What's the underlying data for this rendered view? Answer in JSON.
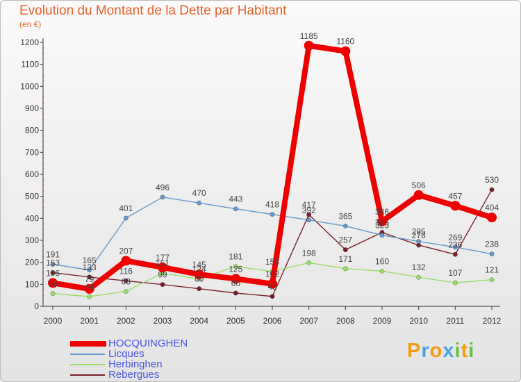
{
  "chart_data": {
    "type": "line",
    "title": "Evolution du Montant de la Dette par Habitant",
    "subtitle": "(en €)",
    "xlabel": "",
    "ylabel": "",
    "x": [
      "2000",
      "2001",
      "2002",
      "2003",
      "2004",
      "2005",
      "2006",
      "2007",
      "2008",
      "2009",
      "2010",
      "2011",
      "2012"
    ],
    "ylim": [
      0,
      1200
    ],
    "yticks": [
      0,
      100,
      200,
      300,
      400,
      500,
      600,
      700,
      800,
      900,
      1000,
      1100,
      1200
    ],
    "grid": false,
    "legend_position": "bottom-left",
    "series": [
      {
        "name": "HOCQUINGHEN",
        "color": "#ee0000",
        "values": [
          106,
          79,
          207,
          177,
          145,
          125,
          102,
          1185,
          1160,
          386,
          506,
          457,
          404
        ]
      },
      {
        "name": "Licques",
        "color": "#6699cc",
        "values": [
          191,
          165,
          401,
          496,
          470,
          443,
          418,
          392,
          365,
          323,
          295,
          269,
          238
        ]
      },
      {
        "name": "Herbinghen",
        "color": "#99dd66",
        "values": [
          58,
          44,
          68,
          151,
          124,
          181,
          158,
          198,
          171,
          160,
          132,
          107,
          121
        ]
      },
      {
        "name": "Rebergues",
        "color": "#7a1f2a",
        "values": [
          153,
          133,
          116,
          99,
          80,
          60,
          45,
          417,
          257,
          336,
          278,
          236,
          530
        ]
      }
    ]
  },
  "brand": {
    "letters": [
      "P",
      "r",
      "o",
      "x",
      "i",
      "t",
      "i"
    ],
    "colors": [
      "#f39c12",
      "#4aa3df",
      "#f39c12",
      "#4aa3df",
      "#6abf3b",
      "#f39c12",
      "#6abf3b"
    ]
  }
}
